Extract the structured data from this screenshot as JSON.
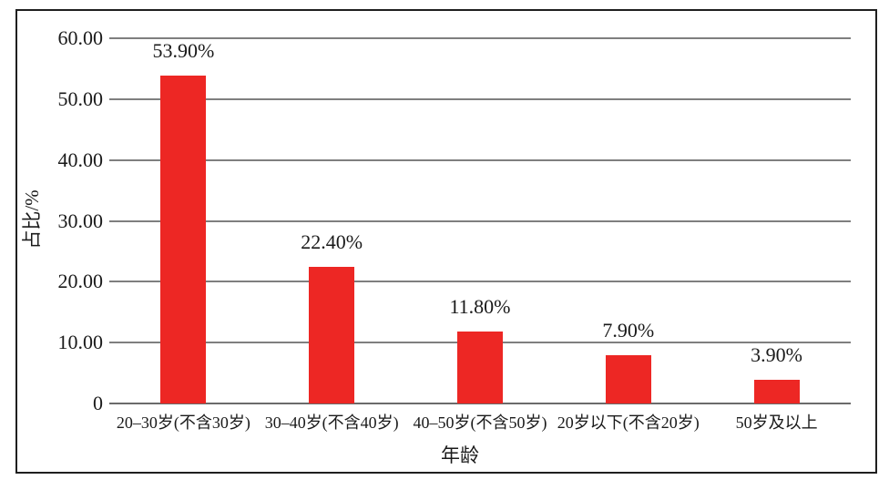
{
  "chart_data": {
    "type": "bar",
    "title": "",
    "categories": [
      "20–30岁(不含30岁)",
      "30–40岁(不含40岁)",
      "40–50岁(不含50岁)",
      "20岁以下(不含20岁)",
      "50岁及以上"
    ],
    "values": [
      53.9,
      22.4,
      11.8,
      7.9,
      3.9
    ],
    "value_labels": [
      "53.90%",
      "22.40%",
      "11.80%",
      "7.90%",
      "3.90%"
    ],
    "xlabel": "年龄",
    "ylabel": "占比/%",
    "ylim": [
      0,
      60
    ],
    "yticks": [
      {
        "value": 0,
        "label": "0"
      },
      {
        "value": 10,
        "label": "10.00"
      },
      {
        "value": 20,
        "label": "20.00"
      },
      {
        "value": 30,
        "label": "30.00"
      },
      {
        "value": 40,
        "label": "40.00"
      },
      {
        "value": 50,
        "label": "50.00"
      },
      {
        "value": 60,
        "label": "60.00"
      }
    ],
    "grid": true,
    "legend": "none",
    "bar_color": "#ed2724",
    "gridline_color": "#7f7f7f",
    "frame_border_color": "#1f1f1f",
    "text_color": "#1a1a1a"
  }
}
